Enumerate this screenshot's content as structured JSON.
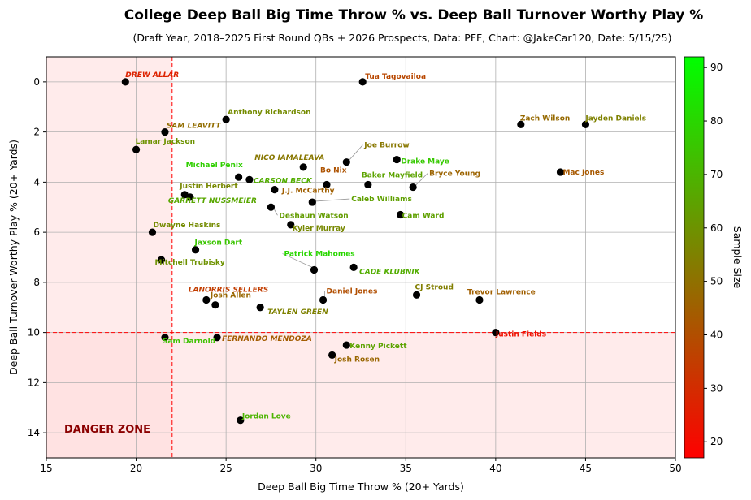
{
  "chart_data": {
    "type": "scatter",
    "title": "College Deep Ball Big Time Throw % vs. Deep Ball Turnover Worthy Play %",
    "subtitle": "(Draft Year, 2018–2025 First Round QBs + 2026 Prospects, Data: PFF, Chart: @JakeCar120, Date: 5/15/25)",
    "xlabel": "Deep Ball Big Time Throw % (20+ Yards)",
    "ylabel": "Deep Ball Turnover Worthy Play % (20+ Yards)",
    "xlim": [
      15,
      50
    ],
    "ylim": [
      15,
      -1
    ],
    "y_inverted": true,
    "xticks": [
      15,
      20,
      25,
      30,
      35,
      40,
      45,
      50
    ],
    "yticks": [
      0,
      2,
      4,
      6,
      8,
      10,
      12,
      14
    ],
    "grid": true,
    "threshold_x": 22,
    "threshold_y": 10,
    "danger_label": "DANGER ZONE",
    "colorbar": {
      "label": "Sample Size",
      "min": 17,
      "max": 92,
      "ticks": [
        20,
        30,
        40,
        50,
        60,
        70,
        80,
        90
      ],
      "colors": [
        "#ff0000",
        "#00ff00"
      ]
    },
    "points": [
      {
        "name": "DREW ALLAR",
        "x": 19.4,
        "y": 0.0,
        "size": 27,
        "prospect": true
      },
      {
        "name": "Tua Tagovailoa",
        "x": 32.6,
        "y": 0.0,
        "size": 38,
        "prospect": false
      },
      {
        "name": "Anthony Richardson",
        "x": 25.0,
        "y": 1.5,
        "size": 58,
        "prospect": false
      },
      {
        "name": "SAM LEAVITT",
        "x": 21.6,
        "y": 2.0,
        "size": 49,
        "prospect": true
      },
      {
        "name": "Lamar Jackson",
        "x": 20.0,
        "y": 2.7,
        "size": 60,
        "prospect": false
      },
      {
        "name": "Zach Wilson",
        "x": 41.4,
        "y": 1.7,
        "size": 48,
        "prospect": false
      },
      {
        "name": "Jayden Daniels",
        "x": 45.0,
        "y": 1.7,
        "size": 55,
        "prospect": false
      },
      {
        "name": "NICO IAMALEAVA",
        "x": 29.3,
        "y": 3.4,
        "size": 52,
        "prospect": true
      },
      {
        "name": "Joe Burrow",
        "x": 31.7,
        "y": 3.2,
        "size": 52,
        "prospect": false
      },
      {
        "name": "Drake Maye",
        "x": 34.5,
        "y": 3.1,
        "size": 76,
        "prospect": false
      },
      {
        "name": "Michael Penix",
        "x": 25.7,
        "y": 3.8,
        "size": 78,
        "prospect": false
      },
      {
        "name": "CARSON BECK",
        "x": 26.3,
        "y": 3.9,
        "size": 68,
        "prospect": true
      },
      {
        "name": "Bo Nix",
        "x": 30.6,
        "y": 4.1,
        "size": 41,
        "prospect": false
      },
      {
        "name": "Baker Mayfield",
        "x": 32.9,
        "y": 4.1,
        "size": 65,
        "prospect": false
      },
      {
        "name": "Bryce Young",
        "x": 35.4,
        "y": 4.2,
        "size": 46,
        "prospect": false
      },
      {
        "name": "Mac Jones",
        "x": 43.6,
        "y": 3.6,
        "size": 43,
        "prospect": false
      },
      {
        "name": "Justin Herbert",
        "x": 22.7,
        "y": 4.5,
        "size": 57,
        "prospect": false
      },
      {
        "name": "J.J. McCarthy",
        "x": 27.7,
        "y": 4.3,
        "size": 45,
        "prospect": false
      },
      {
        "name": "GARRETT NUSSMEIER",
        "x": 23.0,
        "y": 4.6,
        "size": 66,
        "prospect": true
      },
      {
        "name": "Caleb Williams",
        "x": 29.8,
        "y": 4.8,
        "size": 64,
        "prospect": false
      },
      {
        "name": "Deshaun Watson",
        "x": 27.5,
        "y": 5.0,
        "size": 63,
        "prospect": false
      },
      {
        "name": "Cam Ward",
        "x": 34.7,
        "y": 5.3,
        "size": 64,
        "prospect": false
      },
      {
        "name": "Kyler Murray",
        "x": 28.6,
        "y": 5.7,
        "size": 57,
        "prospect": false
      },
      {
        "name": "Dwayne Haskins",
        "x": 20.9,
        "y": 6.0,
        "size": 58,
        "prospect": false
      },
      {
        "name": "Jaxson Dart",
        "x": 23.3,
        "y": 6.7,
        "size": 75,
        "prospect": false
      },
      {
        "name": "Mitchell Trubisky",
        "x": 21.4,
        "y": 7.1,
        "size": 60,
        "prospect": false
      },
      {
        "name": "Patrick Mahomes",
        "x": 29.9,
        "y": 7.5,
        "size": 80,
        "prospect": false
      },
      {
        "name": "CADE KLUBNIK",
        "x": 32.1,
        "y": 7.4,
        "size": 68,
        "prospect": true
      },
      {
        "name": "LANORRIS SELLERS",
        "x": 23.9,
        "y": 8.7,
        "size": 35,
        "prospect": true
      },
      {
        "name": "Josh Allen",
        "x": 24.4,
        "y": 8.9,
        "size": 47,
        "prospect": false
      },
      {
        "name": "Daniel Jones",
        "x": 30.4,
        "y": 8.7,
        "size": 40,
        "prospect": false
      },
      {
        "name": "CJ Stroud",
        "x": 35.6,
        "y": 8.5,
        "size": 54,
        "prospect": false
      },
      {
        "name": "Trevor Lawrence",
        "x": 39.1,
        "y": 8.7,
        "size": 45,
        "prospect": false
      },
      {
        "name": "TAYLEN GREEN",
        "x": 26.9,
        "y": 9.0,
        "size": 55,
        "prospect": true
      },
      {
        "name": "Justin Fields",
        "x": 40.0,
        "y": 10.0,
        "size": 22,
        "prospect": false
      },
      {
        "name": "Sam Darnold",
        "x": 21.6,
        "y": 10.2,
        "size": 74,
        "prospect": false
      },
      {
        "name": "FERNANDO MENDOZA",
        "x": 24.5,
        "y": 10.2,
        "size": 44,
        "prospect": true
      },
      {
        "name": "Kenny Pickett",
        "x": 31.7,
        "y": 10.5,
        "size": 65,
        "prospect": false
      },
      {
        "name": "Josh Rosen",
        "x": 30.9,
        "y": 10.9,
        "size": 47,
        "prospect": false
      },
      {
        "name": "Jordan Love",
        "x": 25.8,
        "y": 13.5,
        "size": 70,
        "prospect": false
      }
    ]
  }
}
